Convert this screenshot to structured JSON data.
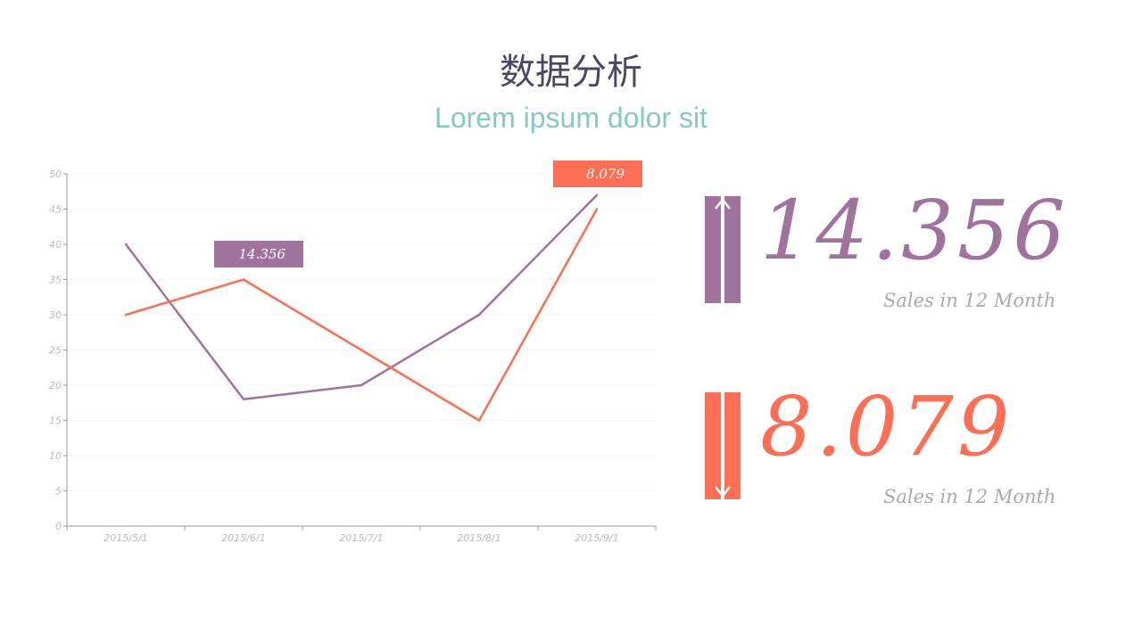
{
  "title": "数据分析",
  "subtitle": "Lorem ipsum dolor sit",
  "colors": {
    "purple": "#a0739e",
    "orange": "#fd6f55",
    "title": "#4a4860",
    "subtitle": "#86c9c4"
  },
  "chart_data": {
    "type": "line",
    "categories": [
      "2015/5/1",
      "2015/6/1",
      "2015/7/1",
      "2015/8/1",
      "2015/9/1"
    ],
    "ylim": [
      0,
      50
    ],
    "yticks": [
      0,
      5,
      10,
      15,
      20,
      25,
      30,
      35,
      40,
      45,
      50
    ],
    "grid": true,
    "series": [
      {
        "values": [
          40,
          18,
          20,
          30,
          47
        ],
        "color": "#a0739e"
      },
      {
        "values": [
          30,
          35,
          25,
          15,
          45
        ],
        "color": "#fd6f55"
      }
    ],
    "annotations": [
      {
        "text": "14.356",
        "color": "#a0739e"
      },
      {
        "text": "8.079",
        "color": "#fd6f55"
      }
    ]
  },
  "stats": [
    {
      "value": "14.356",
      "caption": "Sales in 12 Month",
      "direction": "up",
      "color": "#a0739e"
    },
    {
      "value": "8.079",
      "caption": "Sales in 12 Month",
      "direction": "down",
      "color": "#fd6f55"
    }
  ]
}
